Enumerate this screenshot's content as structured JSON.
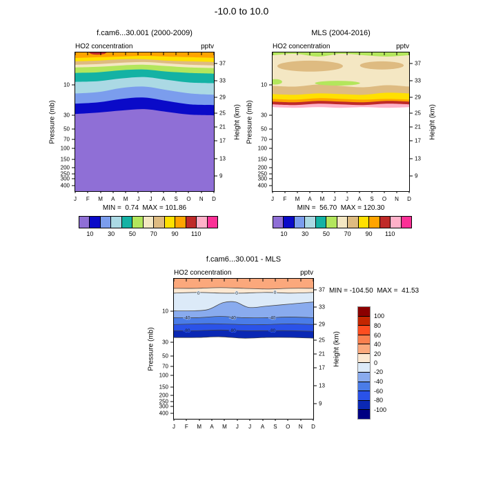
{
  "title": "-10.0 to  10.0",
  "months": [
    "J",
    "F",
    "M",
    "A",
    "M",
    "J",
    "J",
    "A",
    "S",
    "O",
    "N",
    "D"
  ],
  "pressure_label": "Pressure (mb)",
  "height_label": "Height (km)",
  "pressure_ticks": [
    "10",
    "30",
    "50",
    "70",
    "100",
    "150",
    "200",
    "250",
    "300",
    "400"
  ],
  "height_ticks": [
    "37",
    "33",
    "29",
    "25",
    "21",
    "17",
    "13",
    "9"
  ],
  "panels": {
    "model": {
      "title": "f.cam6...30.001 (2000-2009)",
      "field": "HO2 concentration",
      "units": "pptv",
      "min_max": "MIN =  0.74  MAX = 101.86"
    },
    "mls": {
      "title": "MLS (2004-2016)",
      "field": "HO2 concentration",
      "units": "pptv",
      "min_max": "MIN =  56.70  MAX = 120.30"
    },
    "diff": {
      "title": "f.cam6...30.001 - MLS",
      "field": "HO2 concentration",
      "units": "pptv",
      "min_max": "MIN = -104.50  MAX =  41.53"
    }
  },
  "colorbar": {
    "labels": [
      "10",
      "30",
      "50",
      "70",
      "90",
      "110"
    ],
    "colors": [
      "#8f6fd6",
      "#0a0ac8",
      "#7b9ded",
      "#abd9e4",
      "#14b2a4",
      "#b3e65c",
      "#f4e7c3",
      "#debb81",
      "#ffe000",
      "#ffa400",
      "#bf2a28",
      "#ffb1c9",
      "#fb3096"
    ]
  },
  "diff_colorbar": {
    "labels": [
      "100",
      "80",
      "60",
      "40",
      "20",
      "0",
      "-20",
      "-40",
      "-60",
      "-80",
      "-100"
    ],
    "colors": [
      "#8b0000",
      "#c42600",
      "#fe4d20",
      "#fa7f4e",
      "#fba87c",
      "#fce8d2",
      "#dceaf8",
      "#89abee",
      "#4a7ce8",
      "#2a52e8",
      "#0a28b4",
      "#000082"
    ]
  },
  "contours": {
    "zero": "0",
    "minus40": "-40",
    "minus80": "-80"
  },
  "chart_data": [
    {
      "type": "filled_contour",
      "panel": "model",
      "title": "f.cam6...30.001 (2000-2009)",
      "field": "HO2 concentration",
      "units": "pptv",
      "x_categories": [
        "J",
        "F",
        "M",
        "A",
        "M",
        "J",
        "J",
        "A",
        "S",
        "O",
        "N",
        "D"
      ],
      "y_left": {
        "label": "Pressure (mb)",
        "scale": "log",
        "ticks": [
          10,
          30,
          50,
          70,
          100,
          150,
          200,
          250,
          300,
          400
        ],
        "range_mb": [
          3.2,
          475
        ]
      },
      "y_right": {
        "label": "Height (km)",
        "ticks": [
          37,
          33,
          29,
          25,
          21,
          17,
          13,
          9
        ]
      },
      "levels": [
        10,
        20,
        30,
        40,
        50,
        60,
        70,
        80,
        90,
        100,
        110,
        120
      ],
      "min": 0.74,
      "max": 101.86,
      "profile_pressure_mb_vs_pptv": [
        [
          3.2,
          95
        ],
        [
          4,
          85
        ],
        [
          5,
          72
        ],
        [
          6.5,
          58
        ],
        [
          8,
          45
        ],
        [
          10,
          33
        ],
        [
          13,
          24
        ],
        [
          17,
          15
        ],
        [
          22,
          10
        ],
        [
          30,
          6
        ],
        [
          60,
          4
        ],
        [
          150,
          3
        ],
        [
          400,
          2
        ]
      ],
      "seasonality": "all contour surfaces lift by roughly 1-2 km during May-July"
    },
    {
      "type": "filled_contour",
      "panel": "mls",
      "title": "MLS (2004-2016)",
      "field": "HO2 concentration",
      "units": "pptv",
      "x_categories": [
        "J",
        "F",
        "M",
        "A",
        "M",
        "J",
        "J",
        "A",
        "S",
        "O",
        "N",
        "D"
      ],
      "y_left": {
        "label": "Pressure (mb)",
        "scale": "log",
        "ticks": [
          10,
          30,
          50,
          70,
          100,
          150,
          200,
          250,
          300,
          400
        ],
        "range_mb": [
          3.2,
          475
        ]
      },
      "y_right": {
        "label": "Height (km)",
        "ticks": [
          37,
          33,
          29,
          25,
          21,
          17,
          13,
          9
        ]
      },
      "levels": [
        10,
        20,
        30,
        40,
        50,
        60,
        70,
        80,
        90,
        100,
        110,
        120
      ],
      "min": 56.7,
      "max": 120.3,
      "no_data_below_mb": 20,
      "profile_pressure_mb_vs_pptv": [
        [
          3.2,
          58
        ],
        [
          4,
          63
        ],
        [
          6,
          66
        ],
        [
          8,
          72
        ],
        [
          10,
          76
        ],
        [
          12,
          83
        ],
        [
          14,
          92
        ],
        [
          16,
          102
        ],
        [
          18,
          110
        ],
        [
          19.5,
          117
        ]
      ]
    },
    {
      "type": "filled_contour_difference",
      "panel": "diff",
      "title": "f.cam6...30.001 - MLS",
      "field": "HO2 concentration",
      "units": "pptv",
      "x_categories": [
        "J",
        "F",
        "M",
        "A",
        "M",
        "J",
        "J",
        "A",
        "S",
        "O",
        "N",
        "D"
      ],
      "y_left": {
        "label": "Pressure (mb)",
        "scale": "log",
        "ticks": [
          10,
          30,
          50,
          70,
          100,
          150,
          200,
          250,
          300,
          400
        ],
        "range_mb": [
          3.2,
          475
        ]
      },
      "y_right": {
        "label": "Height (km)",
        "ticks": [
          37,
          33,
          29,
          25,
          21,
          17,
          13,
          9
        ]
      },
      "levels": [
        -100,
        -80,
        -60,
        -40,
        -20,
        0,
        20,
        40,
        60,
        80,
        100
      ],
      "labeled_contours": [
        0,
        -40,
        -80
      ],
      "min": -104.5,
      "max": 41.53,
      "no_data_below_mb": 20,
      "profile_pressure_mb_vs_pptv": [
        [
          3.2,
          28
        ],
        [
          4,
          12
        ],
        [
          5,
          2
        ],
        [
          6,
          -10
        ],
        [
          8,
          -22
        ],
        [
          10,
          -32
        ],
        [
          12,
          -44
        ],
        [
          14,
          -58
        ],
        [
          16,
          -72
        ],
        [
          18,
          -88
        ],
        [
          20,
          -98
        ]
      ]
    }
  ]
}
